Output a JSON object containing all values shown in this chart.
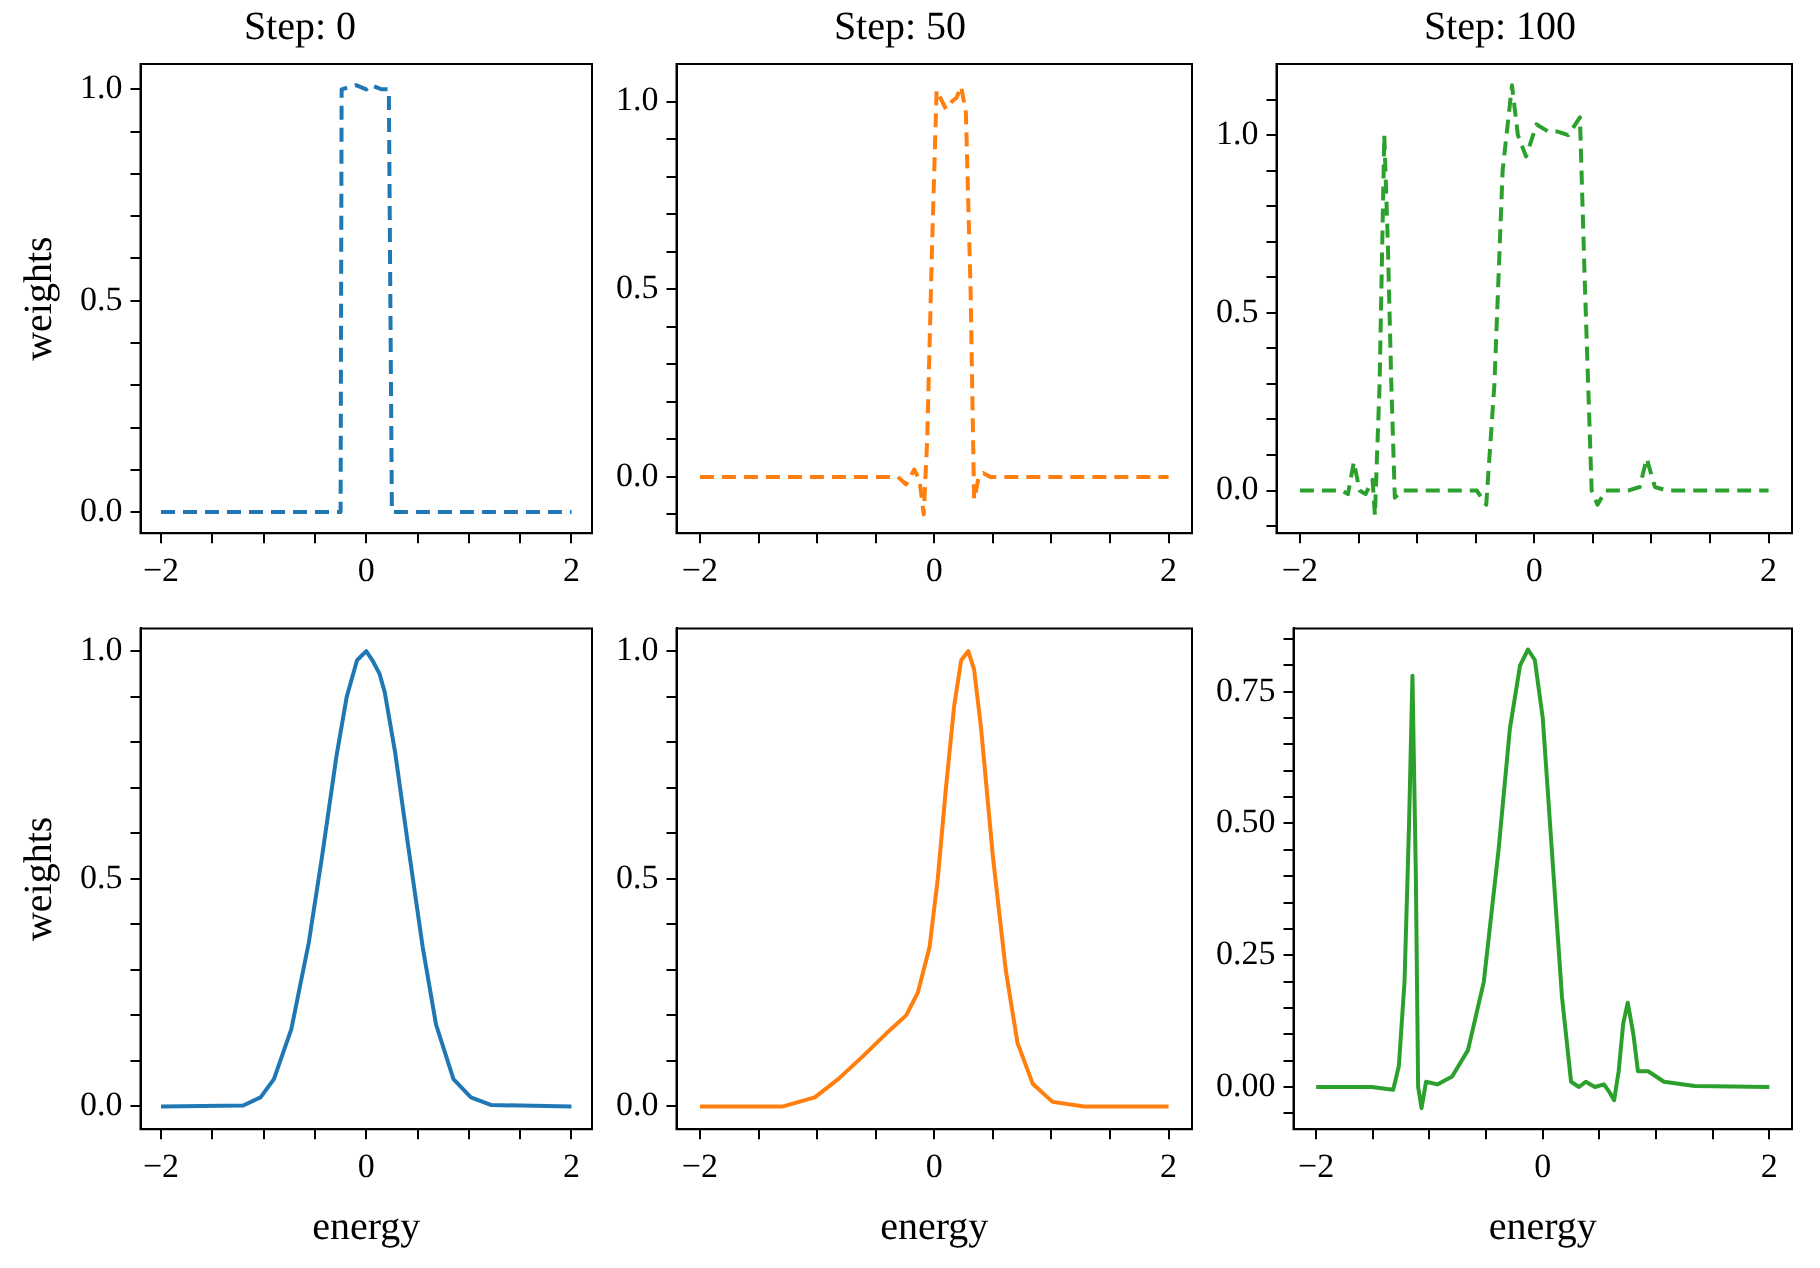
{
  "chart_data": [
    {
      "type": "line",
      "title": "Step: 0",
      "ylabel": "weights",
      "color": "#1f77b4",
      "line_style": "dashed",
      "marker": "none",
      "grid": false,
      "legend": false,
      "xlim": [
        -2.2,
        2.2
      ],
      "ylim": [
        -0.05,
        1.06
      ],
      "xticks": [
        {
          "value": -2,
          "label": "−2"
        },
        {
          "value": -1.5,
          "label": null
        },
        {
          "value": -1,
          "label": null
        },
        {
          "value": -0.5,
          "label": null
        },
        {
          "value": 0,
          "label": "0"
        },
        {
          "value": 0.5,
          "label": null
        },
        {
          "value": 1,
          "label": null
        },
        {
          "value": 1.5,
          "label": null
        },
        {
          "value": 2,
          "label": "2"
        }
      ],
      "yticks": [
        {
          "value": 0,
          "label": "0.0"
        },
        {
          "value": 0.1,
          "label": null
        },
        {
          "value": 0.2,
          "label": null
        },
        {
          "value": 0.3,
          "label": null
        },
        {
          "value": 0.4,
          "label": null
        },
        {
          "value": 0.5,
          "label": "0.5"
        },
        {
          "value": 0.6,
          "label": null
        },
        {
          "value": 0.7,
          "label": null
        },
        {
          "value": 0.8,
          "label": null
        },
        {
          "value": 0.9,
          "label": null
        },
        {
          "value": 1,
          "label": "1.0"
        }
      ],
      "x": [
        -2,
        -0.25,
        -0.24,
        -0.1,
        0,
        0.05,
        0.15,
        0.22,
        0.25,
        2
      ],
      "values": [
        0,
        0,
        1.0,
        1.01,
        1.0,
        1.01,
        1.0,
        1.0,
        0,
        0
      ]
    },
    {
      "type": "line",
      "title": "Step: 50",
      "color": "#ff7f0e",
      "line_style": "dashed",
      "marker": "none",
      "grid": false,
      "legend": false,
      "xlim": [
        -2.2,
        2.2
      ],
      "ylim": [
        -0.15,
        1.1
      ],
      "xticks": [
        {
          "value": -2,
          "label": "−2"
        },
        {
          "value": -1.5,
          "label": null
        },
        {
          "value": -1,
          "label": null
        },
        {
          "value": -0.5,
          "label": null
        },
        {
          "value": 0,
          "label": "0"
        },
        {
          "value": 0.5,
          "label": null
        },
        {
          "value": 1,
          "label": null
        },
        {
          "value": 1.5,
          "label": null
        },
        {
          "value": 2,
          "label": "2"
        }
      ],
      "yticks": [
        {
          "value": -0.1,
          "label": null
        },
        {
          "value": 0,
          "label": "0.0"
        },
        {
          "value": 0.1,
          "label": null
        },
        {
          "value": 0.2,
          "label": null
        },
        {
          "value": 0.3,
          "label": null
        },
        {
          "value": 0.4,
          "label": null
        },
        {
          "value": 0.5,
          "label": "0.5"
        },
        {
          "value": 0.6,
          "label": null
        },
        {
          "value": 0.7,
          "label": null
        },
        {
          "value": 0.8,
          "label": null
        },
        {
          "value": 0.9,
          "label": null
        },
        {
          "value": 1,
          "label": "1.0"
        }
      ],
      "x": [
        -2,
        -0.31,
        -0.24,
        -0.17,
        -0.125,
        -0.09,
        -0.06,
        -0.02,
        0.02,
        0.1,
        0.15,
        0.19,
        0.23,
        0.27,
        0.31,
        0.34,
        0.38,
        0.42,
        0.48,
        2
      ],
      "values": [
        0,
        0,
        -0.02,
        0.02,
        -0.01,
        -0.1,
        0.1,
        0.6,
        1.03,
        0.98,
        1.0,
        1.01,
        1.04,
        0.97,
        0.5,
        -0.06,
        0,
        0.01,
        0,
        0
      ]
    },
    {
      "type": "line",
      "title": "Step: 100",
      "color": "#2ca02c",
      "line_style": "dashed",
      "marker": "none",
      "grid": false,
      "legend": false,
      "xlim": [
        -2.2,
        2.2
      ],
      "ylim": [
        -0.12,
        1.2
      ],
      "xticks": [
        {
          "value": -2,
          "label": "−2"
        },
        {
          "value": -1.5,
          "label": null
        },
        {
          "value": -1,
          "label": null
        },
        {
          "value": -0.5,
          "label": null
        },
        {
          "value": 0,
          "label": "0"
        },
        {
          "value": 0.5,
          "label": null
        },
        {
          "value": 1,
          "label": null
        },
        {
          "value": 1.5,
          "label": null
        },
        {
          "value": 2,
          "label": "2"
        }
      ],
      "yticks": [
        {
          "value": -0.1,
          "label": null
        },
        {
          "value": 0,
          "label": "0.0"
        },
        {
          "value": 0.1,
          "label": null
        },
        {
          "value": 0.2,
          "label": null
        },
        {
          "value": 0.3,
          "label": null
        },
        {
          "value": 0.4,
          "label": null
        },
        {
          "value": 0.5,
          "label": "0.5"
        },
        {
          "value": 0.6,
          "label": null
        },
        {
          "value": 0.7,
          "label": null
        },
        {
          "value": 0.8,
          "label": null
        },
        {
          "value": 0.9,
          "label": null
        },
        {
          "value": 1,
          "label": "1.0"
        },
        {
          "value": 1.1,
          "label": null
        }
      ],
      "x": [
        -2,
        -1.64,
        -1.59,
        -1.54,
        -1.49,
        -1.44,
        -1.38,
        -1.36,
        -1.32,
        -1.28,
        -1.25,
        -1.22,
        -1.19,
        -1.13,
        -0.49,
        -0.41,
        -0.34,
        -0.27,
        -0.19,
        -0.14,
        -0.07,
        0.02,
        0.12,
        0.2,
        0.29,
        0.39,
        0.43,
        0.49,
        0.54,
        0.61,
        0.8,
        0.9,
        0.96,
        1.03,
        1.13,
        2
      ],
      "values": [
        0,
        0,
        -0.01,
        0.08,
        0,
        -0.01,
        0.03,
        -0.07,
        0.3,
        1.0,
        0.7,
        0.3,
        -0.02,
        0,
        0,
        -0.04,
        0.3,
        0.9,
        1.14,
        1.0,
        0.94,
        1.03,
        1.01,
        1.01,
        1.0,
        1.05,
        0.6,
        0,
        -0.04,
        0,
        0,
        0.01,
        0.09,
        0.01,
        0,
        0
      ]
    },
    {
      "type": "line",
      "xlabel": "energy",
      "ylabel": "weights",
      "color": "#1f77b4",
      "line_style": "solid",
      "marker": "none",
      "grid": false,
      "legend": false,
      "xlim": [
        -2.2,
        2.2
      ],
      "ylim": [
        -0.05,
        1.05
      ],
      "xticks": [
        {
          "value": -2,
          "label": "−2"
        },
        {
          "value": -1.5,
          "label": null
        },
        {
          "value": -1,
          "label": null
        },
        {
          "value": -0.5,
          "label": null
        },
        {
          "value": 0,
          "label": "0"
        },
        {
          "value": 0.5,
          "label": null
        },
        {
          "value": 1,
          "label": null
        },
        {
          "value": 1.5,
          "label": null
        },
        {
          "value": 2,
          "label": "2"
        }
      ],
      "yticks": [
        {
          "value": 0,
          "label": "0.0"
        },
        {
          "value": 0.1,
          "label": null
        },
        {
          "value": 0.2,
          "label": null
        },
        {
          "value": 0.3,
          "label": null
        },
        {
          "value": 0.4,
          "label": null
        },
        {
          "value": 0.5,
          "label": "0.5"
        },
        {
          "value": 0.6,
          "label": null
        },
        {
          "value": 0.7,
          "label": null
        },
        {
          "value": 0.8,
          "label": null
        },
        {
          "value": 0.9,
          "label": null
        },
        {
          "value": 1,
          "label": "1.0"
        }
      ],
      "x": [
        -2,
        -1.2,
        -1.03,
        -0.9,
        -0.73,
        -0.56,
        -0.43,
        -0.29,
        -0.19,
        -0.09,
        0,
        0.06,
        0.13,
        0.18,
        0.28,
        0.41,
        0.55,
        0.68,
        0.85,
        1.02,
        1.22,
        2
      ],
      "values": [
        0,
        0.002,
        0.02,
        0.06,
        0.17,
        0.36,
        0.55,
        0.77,
        0.9,
        0.98,
        1.0,
        0.98,
        0.95,
        0.91,
        0.78,
        0.57,
        0.35,
        0.18,
        0.06,
        0.02,
        0.003,
        0
      ]
    },
    {
      "type": "line",
      "xlabel": "energy",
      "color": "#ff7f0e",
      "line_style": "solid",
      "marker": "none",
      "grid": false,
      "legend": false,
      "xlim": [
        -2.2,
        2.2
      ],
      "ylim": [
        -0.05,
        1.05
      ],
      "xticks": [
        {
          "value": -2,
          "label": "−2"
        },
        {
          "value": -1.5,
          "label": null
        },
        {
          "value": -1,
          "label": null
        },
        {
          "value": -0.5,
          "label": null
        },
        {
          "value": 0,
          "label": "0"
        },
        {
          "value": 0.5,
          "label": null
        },
        {
          "value": 1,
          "label": null
        },
        {
          "value": 1.5,
          "label": null
        },
        {
          "value": 2,
          "label": "2"
        }
      ],
      "yticks": [
        {
          "value": 0,
          "label": "0.0"
        },
        {
          "value": 0.1,
          "label": null
        },
        {
          "value": 0.2,
          "label": null
        },
        {
          "value": 0.3,
          "label": null
        },
        {
          "value": 0.4,
          "label": null
        },
        {
          "value": 0.5,
          "label": "0.5"
        },
        {
          "value": 0.6,
          "label": null
        },
        {
          "value": 0.7,
          "label": null
        },
        {
          "value": 0.8,
          "label": null
        },
        {
          "value": 0.9,
          "label": null
        },
        {
          "value": 1,
          "label": "1.0"
        }
      ],
      "x": [
        -2,
        -1.29,
        -1.02,
        -0.82,
        -0.61,
        -0.41,
        -0.24,
        -0.14,
        -0.04,
        0.03,
        0.1,
        0.17,
        0.23,
        0.29,
        0.34,
        0.4,
        0.5,
        0.61,
        0.71,
        0.84,
        1.01,
        1.28,
        2
      ],
      "values": [
        0,
        0,
        0.02,
        0.06,
        0.11,
        0.16,
        0.2,
        0.25,
        0.35,
        0.5,
        0.7,
        0.88,
        0.98,
        1.0,
        0.96,
        0.83,
        0.55,
        0.3,
        0.14,
        0.05,
        0.01,
        0,
        0
      ]
    },
    {
      "type": "line",
      "xlabel": "energy",
      "color": "#2ca02c",
      "line_style": "solid",
      "marker": "none",
      "grid": false,
      "legend": false,
      "xlim": [
        -2.2,
        2.2
      ],
      "ylim": [
        -0.08,
        0.87
      ],
      "xticks": [
        {
          "value": -2,
          "label": "−2"
        },
        {
          "value": -1.5,
          "label": null
        },
        {
          "value": -1,
          "label": null
        },
        {
          "value": -0.5,
          "label": null
        },
        {
          "value": 0,
          "label": "0"
        },
        {
          "value": 0.5,
          "label": null
        },
        {
          "value": 1,
          "label": null
        },
        {
          "value": 1.5,
          "label": null
        },
        {
          "value": 2,
          "label": "2"
        }
      ],
      "yticks": [
        {
          "value": -0.05,
          "label": null
        },
        {
          "value": 0,
          "label": "0.00"
        },
        {
          "value": 0.05,
          "label": null
        },
        {
          "value": 0.1,
          "label": null
        },
        {
          "value": 0.15,
          "label": null
        },
        {
          "value": 0.2,
          "label": null
        },
        {
          "value": 0.25,
          "label": "0.25"
        },
        {
          "value": 0.3,
          "label": null
        },
        {
          "value": 0.35,
          "label": null
        },
        {
          "value": 0.4,
          "label": null
        },
        {
          "value": 0.45,
          "label": null
        },
        {
          "value": 0.5,
          "label": "0.50"
        },
        {
          "value": 0.55,
          "label": null
        },
        {
          "value": 0.6,
          "label": null
        },
        {
          "value": 0.65,
          "label": null
        },
        {
          "value": 0.7,
          "label": null
        },
        {
          "value": 0.75,
          "label": "0.75"
        },
        {
          "value": 0.8,
          "label": null
        },
        {
          "value": 0.85,
          "label": null
        }
      ],
      "x": [
        -2,
        -1.51,
        -1.32,
        -1.27,
        -1.22,
        -1.18,
        -1.15,
        -1.12,
        -1.1,
        -1.07,
        -1.03,
        -0.93,
        -0.8,
        -0.66,
        -0.52,
        -0.39,
        -0.29,
        -0.2,
        -0.13,
        -0.07,
        0,
        0.08,
        0.17,
        0.25,
        0.32,
        0.38,
        0.46,
        0.54,
        0.59,
        0.63,
        0.67,
        0.71,
        0.75,
        0.8,
        0.84,
        0.93,
        1.07,
        1.34,
        2
      ],
      "values": [
        0,
        0,
        -0.005,
        0.04,
        0.2,
        0.5,
        0.78,
        0.4,
        0,
        -0.04,
        0.01,
        0.005,
        0.02,
        0.07,
        0.2,
        0.45,
        0.68,
        0.8,
        0.83,
        0.81,
        0.7,
        0.45,
        0.17,
        0.01,
        0,
        0.01,
        0,
        0.005,
        -0.01,
        -0.025,
        0.03,
        0.12,
        0.16,
        0.1,
        0.03,
        0.03,
        0.01,
        0.002,
        0
      ]
    }
  ]
}
